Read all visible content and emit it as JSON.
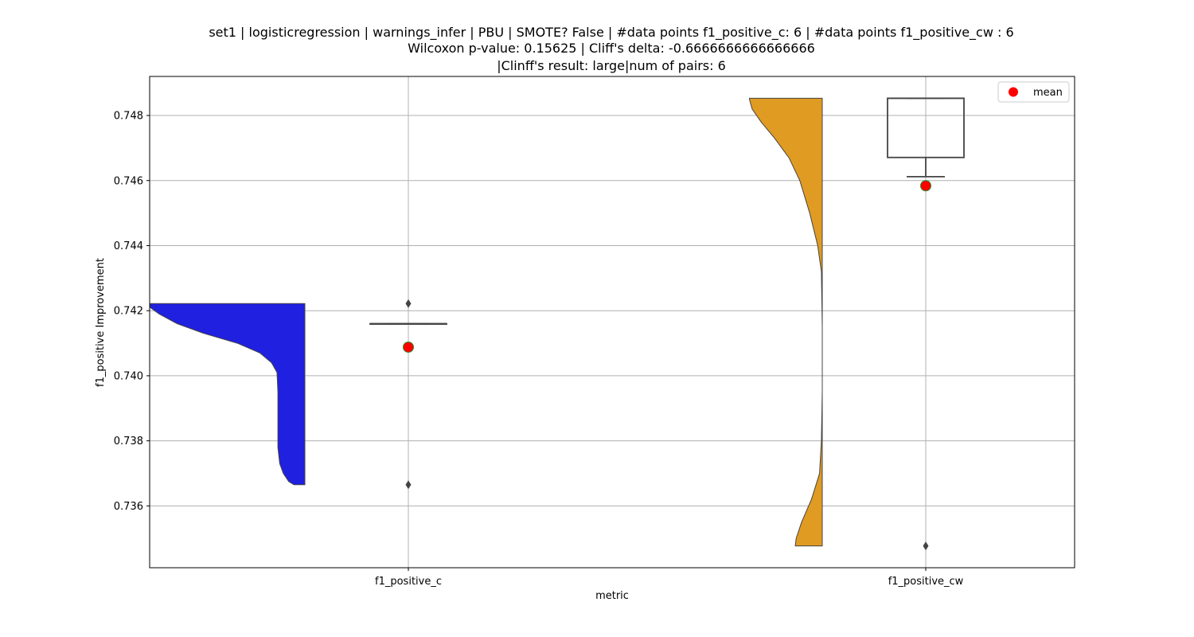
{
  "chart_data": {
    "type": "raincloud",
    "title_lines": [
      "set1 | logisticregression | warnings_infer | PBU | SMOTE? False | #data points f1_positive_c: 6 | #data points f1_positive_cw : 6",
      "Wilcoxon p-value: 0.15625 | Cliff's delta: -0.6666666666666666",
      "|Clinff's result: large|num of pairs: 6"
    ],
    "xlabel": "metric",
    "ylabel": "f1_positive Improvement",
    "categories": [
      "f1_positive_c",
      "f1_positive_cw"
    ],
    "ylim": [
      0.7341,
      0.7492
    ],
    "yticks": [
      0.736,
      0.738,
      0.74,
      0.742,
      0.744,
      0.746,
      0.748
    ],
    "ytick_labels": [
      "0.736",
      "0.738",
      "0.740",
      "0.742",
      "0.744",
      "0.746",
      "0.748"
    ],
    "grid": true,
    "legend": {
      "position": "top-right",
      "entries": [
        {
          "label": "mean",
          "color": "#ff0000"
        }
      ]
    },
    "colors": {
      "f1_positive_c": "#2020e0",
      "f1_positive_cw": "#e09b23",
      "mean_marker": "#ff0000",
      "mean_edge": "#2e8b2e",
      "outline": "#444444",
      "grid": "#b0b0b0"
    },
    "series": [
      {
        "name": "f1_positive_c",
        "violin_profile": [
          [
            0.73665,
            0.12
          ],
          [
            0.73675,
            0.18
          ],
          [
            0.737,
            0.24
          ],
          [
            0.7373,
            0.28
          ],
          [
            0.7378,
            0.3
          ],
          [
            0.7385,
            0.3
          ],
          [
            0.7395,
            0.3
          ],
          [
            0.7401,
            0.31
          ],
          [
            0.7404,
            0.37
          ],
          [
            0.7407,
            0.5
          ],
          [
            0.741,
            0.75
          ],
          [
            0.7413,
            1.12
          ],
          [
            0.7416,
            1.42
          ],
          [
            0.7419,
            1.62
          ],
          [
            0.7421,
            1.72
          ],
          [
            0.74222,
            1.72
          ]
        ],
        "box": {
          "q1": 0.7416,
          "median": 0.7416,
          "q3": 0.7416,
          "whisker_low": 0.7416,
          "whisker_high": 0.7416
        },
        "outliers": [
          0.74222,
          0.73665
        ],
        "mean": 0.74088
      },
      {
        "name": "f1_positive_cw",
        "violin_profile": [
          [
            0.73477,
            0.3
          ],
          [
            0.735,
            0.29
          ],
          [
            0.7355,
            0.23
          ],
          [
            0.7362,
            0.12
          ],
          [
            0.737,
            0.03
          ],
          [
            0.738,
            0.01
          ],
          [
            0.7395,
            0.0
          ],
          [
            0.7415,
            0.0
          ],
          [
            0.7432,
            0.01
          ],
          [
            0.744,
            0.05
          ],
          [
            0.745,
            0.14
          ],
          [
            0.746,
            0.25
          ],
          [
            0.7467,
            0.37
          ],
          [
            0.7473,
            0.53
          ],
          [
            0.7478,
            0.68
          ],
          [
            0.7482,
            0.78
          ],
          [
            0.7485,
            0.81
          ],
          [
            0.74853,
            0.81
          ]
        ],
        "box": {
          "q1": 0.74671,
          "median": 0.74853,
          "q3": 0.74853,
          "whisker_low": 0.74612,
          "whisker_high": 0.74853
        },
        "outliers": [
          0.73477
        ],
        "mean": 0.74584
      }
    ]
  }
}
